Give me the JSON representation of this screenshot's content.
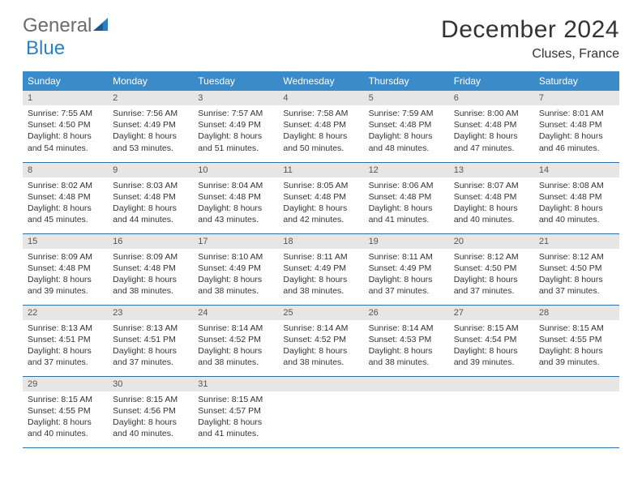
{
  "brand": {
    "part1": "General",
    "part2": "Blue"
  },
  "title": "December 2024",
  "location": "Cluses, France",
  "colors": {
    "header_bg": "#3b8bc9",
    "header_text": "#ffffff",
    "daynum_bg": "#e6e6e6",
    "row_divider": "#2d6fa8",
    "brand_gray": "#6b6b6b",
    "brand_blue": "#2d7fc3"
  },
  "weekdays": [
    "Sunday",
    "Monday",
    "Tuesday",
    "Wednesday",
    "Thursday",
    "Friday",
    "Saturday"
  ],
  "days": [
    {
      "n": "1",
      "sr": "7:55 AM",
      "ss": "4:50 PM",
      "dl": "8 hours and 54 minutes."
    },
    {
      "n": "2",
      "sr": "7:56 AM",
      "ss": "4:49 PM",
      "dl": "8 hours and 53 minutes."
    },
    {
      "n": "3",
      "sr": "7:57 AM",
      "ss": "4:49 PM",
      "dl": "8 hours and 51 minutes."
    },
    {
      "n": "4",
      "sr": "7:58 AM",
      "ss": "4:48 PM",
      "dl": "8 hours and 50 minutes."
    },
    {
      "n": "5",
      "sr": "7:59 AM",
      "ss": "4:48 PM",
      "dl": "8 hours and 48 minutes."
    },
    {
      "n": "6",
      "sr": "8:00 AM",
      "ss": "4:48 PM",
      "dl": "8 hours and 47 minutes."
    },
    {
      "n": "7",
      "sr": "8:01 AM",
      "ss": "4:48 PM",
      "dl": "8 hours and 46 minutes."
    },
    {
      "n": "8",
      "sr": "8:02 AM",
      "ss": "4:48 PM",
      "dl": "8 hours and 45 minutes."
    },
    {
      "n": "9",
      "sr": "8:03 AM",
      "ss": "4:48 PM",
      "dl": "8 hours and 44 minutes."
    },
    {
      "n": "10",
      "sr": "8:04 AM",
      "ss": "4:48 PM",
      "dl": "8 hours and 43 minutes."
    },
    {
      "n": "11",
      "sr": "8:05 AM",
      "ss": "4:48 PM",
      "dl": "8 hours and 42 minutes."
    },
    {
      "n": "12",
      "sr": "8:06 AM",
      "ss": "4:48 PM",
      "dl": "8 hours and 41 minutes."
    },
    {
      "n": "13",
      "sr": "8:07 AM",
      "ss": "4:48 PM",
      "dl": "8 hours and 40 minutes."
    },
    {
      "n": "14",
      "sr": "8:08 AM",
      "ss": "4:48 PM",
      "dl": "8 hours and 40 minutes."
    },
    {
      "n": "15",
      "sr": "8:09 AM",
      "ss": "4:48 PM",
      "dl": "8 hours and 39 minutes."
    },
    {
      "n": "16",
      "sr": "8:09 AM",
      "ss": "4:48 PM",
      "dl": "8 hours and 38 minutes."
    },
    {
      "n": "17",
      "sr": "8:10 AM",
      "ss": "4:49 PM",
      "dl": "8 hours and 38 minutes."
    },
    {
      "n": "18",
      "sr": "8:11 AM",
      "ss": "4:49 PM",
      "dl": "8 hours and 38 minutes."
    },
    {
      "n": "19",
      "sr": "8:11 AM",
      "ss": "4:49 PM",
      "dl": "8 hours and 37 minutes."
    },
    {
      "n": "20",
      "sr": "8:12 AM",
      "ss": "4:50 PM",
      "dl": "8 hours and 37 minutes."
    },
    {
      "n": "21",
      "sr": "8:12 AM",
      "ss": "4:50 PM",
      "dl": "8 hours and 37 minutes."
    },
    {
      "n": "22",
      "sr": "8:13 AM",
      "ss": "4:51 PM",
      "dl": "8 hours and 37 minutes."
    },
    {
      "n": "23",
      "sr": "8:13 AM",
      "ss": "4:51 PM",
      "dl": "8 hours and 37 minutes."
    },
    {
      "n": "24",
      "sr": "8:14 AM",
      "ss": "4:52 PM",
      "dl": "8 hours and 38 minutes."
    },
    {
      "n": "25",
      "sr": "8:14 AM",
      "ss": "4:52 PM",
      "dl": "8 hours and 38 minutes."
    },
    {
      "n": "26",
      "sr": "8:14 AM",
      "ss": "4:53 PM",
      "dl": "8 hours and 38 minutes."
    },
    {
      "n": "27",
      "sr": "8:15 AM",
      "ss": "4:54 PM",
      "dl": "8 hours and 39 minutes."
    },
    {
      "n": "28",
      "sr": "8:15 AM",
      "ss": "4:55 PM",
      "dl": "8 hours and 39 minutes."
    },
    {
      "n": "29",
      "sr": "8:15 AM",
      "ss": "4:55 PM",
      "dl": "8 hours and 40 minutes."
    },
    {
      "n": "30",
      "sr": "8:15 AM",
      "ss": "4:56 PM",
      "dl": "8 hours and 40 minutes."
    },
    {
      "n": "31",
      "sr": "8:15 AM",
      "ss": "4:57 PM",
      "dl": "8 hours and 41 minutes."
    }
  ],
  "labels": {
    "sunrise": "Sunrise:",
    "sunset": "Sunset:",
    "daylight": "Daylight:"
  },
  "layout": {
    "start_offset": 0,
    "total_cells": 35
  }
}
